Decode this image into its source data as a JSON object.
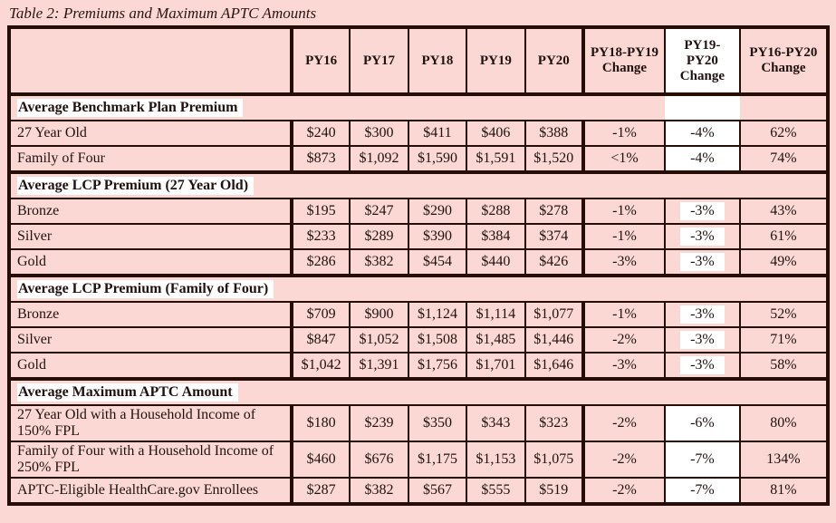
{
  "title": "Table 2: Premiums and Maximum APTC Amounts",
  "colors": {
    "page_background": "#fbd8d3",
    "table_border": "#260d07",
    "text": "#201210",
    "highlight": "#ffffff"
  },
  "table": {
    "columns": [
      "",
      "PY16",
      "PY17",
      "PY18",
      "PY19",
      "PY20",
      "PY18-PY19 Change",
      "PY19-PY20 Change",
      "PY16-PY20 Change"
    ],
    "highlight_column_index": 7,
    "sections": [
      {
        "header": "Average Benchmark Plan Premium",
        "header_patch_white": true,
        "highlight_style": "cell",
        "rows": [
          {
            "label": "27 Year Old",
            "values": [
              "$240",
              "$300",
              "$411",
              "$406",
              "$388",
              "-1%",
              "-4%",
              "62%"
            ]
          },
          {
            "label": "Family of Four",
            "values": [
              "$873",
              "$1,092",
              "$1,590",
              "$1,591",
              "$1,520",
              "<1%",
              "-4%",
              "74%"
            ]
          }
        ]
      },
      {
        "header": "Average LCP Premium (27 Year Old)",
        "header_patch_white": false,
        "highlight_style": "span",
        "rows": [
          {
            "label": "Bronze",
            "values": [
              "$195",
              "$247",
              "$290",
              "$288",
              "$278",
              "-1%",
              "-3%",
              "43%"
            ]
          },
          {
            "label": "Silver",
            "values": [
              "$233",
              "$289",
              "$390",
              "$384",
              "$374",
              "-1%",
              "-3%",
              "61%"
            ]
          },
          {
            "label": "Gold",
            "values": [
              "$286",
              "$382",
              "$454",
              "$440",
              "$426",
              "-3%",
              "-3%",
              "49%"
            ]
          }
        ]
      },
      {
        "header": "Average LCP Premium (Family of Four)",
        "header_patch_white": false,
        "highlight_style": "span",
        "rows": [
          {
            "label": "Bronze",
            "values": [
              "$709",
              "$900",
              "$1,124",
              "$1,114",
              "$1,077",
              "-1%",
              "-3%",
              "52%"
            ]
          },
          {
            "label": "Silver",
            "values": [
              "$847",
              "$1,052",
              "$1,508",
              "$1,485",
              "$1,446",
              "-2%",
              "-3%",
              "71%"
            ]
          },
          {
            "label": "Gold",
            "values": [
              "$1,042",
              "$1,391",
              "$1,756",
              "$1,701",
              "$1,646",
              "-3%",
              "-3%",
              "58%"
            ]
          }
        ]
      },
      {
        "header": "Average Maximum APTC Amount",
        "header_patch_white": false,
        "highlight_style": "cell",
        "rows": [
          {
            "label": "27 Year Old with a Household Income of 150% FPL",
            "values": [
              "$180",
              "$239",
              "$350",
              "$343",
              "$323",
              "-2%",
              "-6%",
              "80%"
            ]
          },
          {
            "label": "Family of Four with a Household Income of 250% FPL",
            "values": [
              "$460",
              "$676",
              "$1,175",
              "$1,153",
              "$1,075",
              "-2%",
              "-7%",
              "134%"
            ]
          },
          {
            "label": "APTC-Eligible HealthCare.gov Enrollees",
            "values": [
              "$287",
              "$382",
              "$567",
              "$555",
              "$519",
              "-2%",
              "-7%",
              "81%"
            ]
          }
        ]
      }
    ]
  }
}
